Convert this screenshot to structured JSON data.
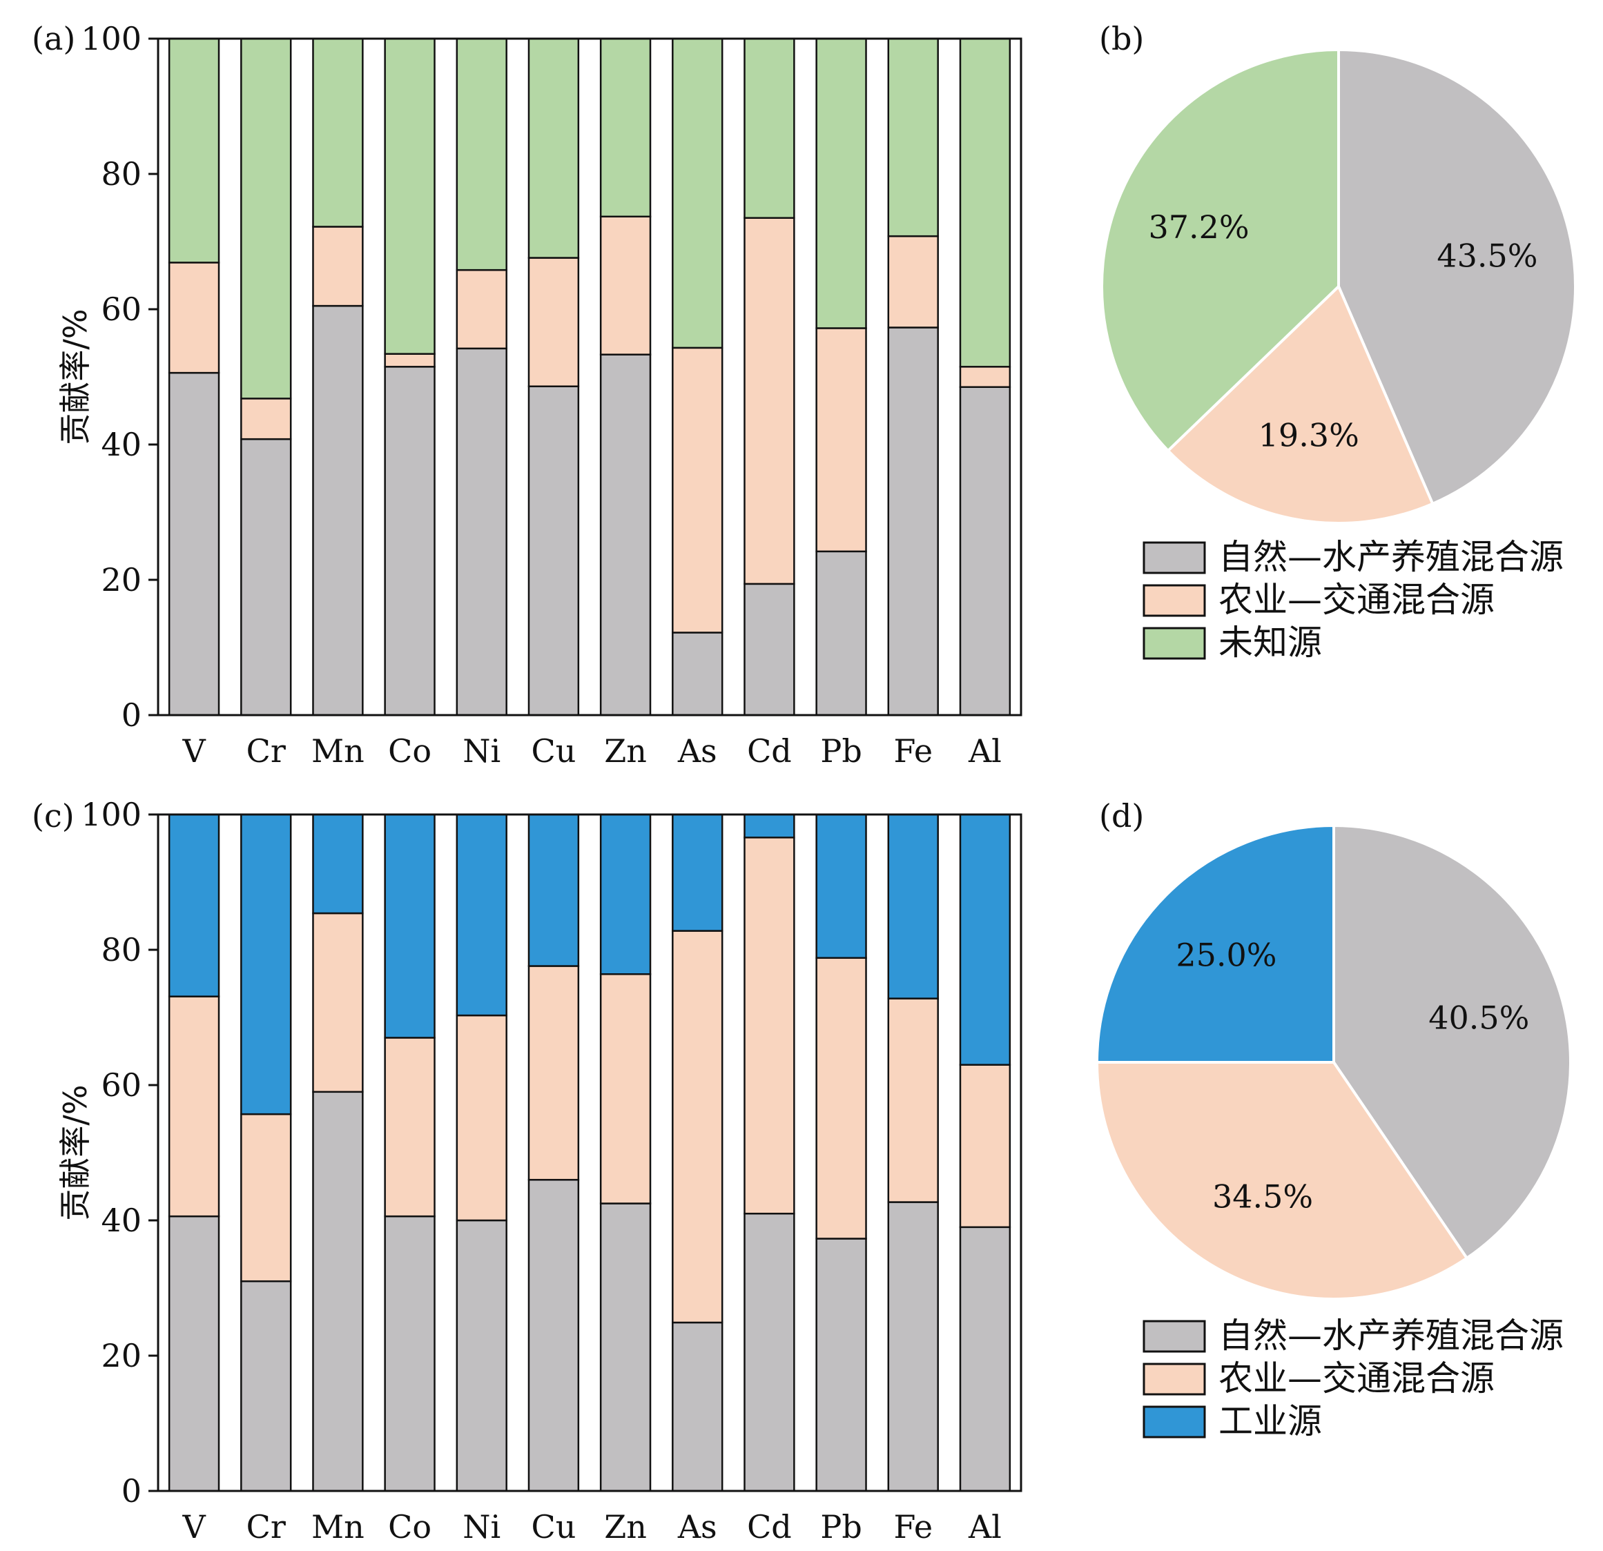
{
  "chart_data": [
    {
      "panel": "(a)",
      "type": "bar",
      "stacked": true,
      "categories": [
        "V",
        "Cr",
        "Mn",
        "Co",
        "Ni",
        "Cu",
        "Zn",
        "As",
        "Cd",
        "Pb",
        "Fe",
        "Al"
      ],
      "ylabel": "贡献率/%",
      "ylim": [
        0,
        100
      ],
      "yticks": [
        "0",
        "20",
        "40",
        "60",
        "80",
        "100"
      ],
      "series": [
        {
          "name": "自然—水产养殖混合源",
          "color": "#c1bfc1",
          "values": [
            50.6,
            40.8,
            60.5,
            51.5,
            54.2,
            48.6,
            53.3,
            12.2,
            19.4,
            24.2,
            57.3,
            48.5
          ]
        },
        {
          "name": "农业—交通混合源",
          "color": "#f9d5bf",
          "values": [
            16.3,
            6.0,
            11.7,
            1.9,
            11.6,
            19.0,
            20.4,
            42.1,
            54.1,
            33.0,
            13.5,
            3.0
          ]
        },
        {
          "name": "未知源",
          "color": "#b4d7a5",
          "values": [
            33.1,
            53.2,
            27.8,
            46.6,
            34.2,
            32.4,
            26.3,
            45.7,
            26.5,
            42.8,
            29.2,
            48.5
          ]
        }
      ]
    },
    {
      "panel": "(b)",
      "type": "pie",
      "slices": [
        {
          "name": "自然—水产养殖混合源",
          "value": 43.5,
          "label": "43.5%",
          "color": "#c1bfc1"
        },
        {
          "name": "农业—交通混合源",
          "value": 19.3,
          "label": "19.3%",
          "color": "#f9d5bf"
        },
        {
          "name": "未知源",
          "value": 37.2,
          "label": "37.2%",
          "color": "#b4d7a5"
        }
      ],
      "legend": [
        "自然—水产养殖混合源",
        "农业—交通混合源",
        "未知源"
      ]
    },
    {
      "panel": "(c)",
      "type": "bar",
      "stacked": true,
      "categories": [
        "V",
        "Cr",
        "Mn",
        "Co",
        "Ni",
        "Cu",
        "Zn",
        "As",
        "Cd",
        "Pb",
        "Fe",
        "Al"
      ],
      "ylabel": "贡献率/%",
      "ylim": [
        0,
        100
      ],
      "yticks": [
        "0",
        "20",
        "40",
        "60",
        "80",
        "100"
      ],
      "series": [
        {
          "name": "自然—水产养殖混合源",
          "color": "#c1bfc1",
          "values": [
            40.6,
            31.0,
            59.0,
            40.6,
            40.0,
            46.0,
            42.5,
            24.9,
            41.0,
            37.3,
            42.7,
            39.0
          ]
        },
        {
          "name": "农业—交通混合源",
          "color": "#f9d5bf",
          "values": [
            32.5,
            24.7,
            26.4,
            26.4,
            30.3,
            31.6,
            33.9,
            57.9,
            55.6,
            41.5,
            30.1,
            24.0
          ]
        },
        {
          "name": "工业源",
          "color": "#3096d6",
          "values": [
            26.9,
            44.3,
            14.6,
            33.0,
            29.7,
            22.4,
            23.6,
            17.2,
            3.4,
            21.2,
            27.2,
            37.0
          ]
        }
      ]
    },
    {
      "panel": "(d)",
      "type": "pie",
      "slices": [
        {
          "name": "自然—水产养殖混合源",
          "value": 40.5,
          "label": "40.5%",
          "color": "#c1bfc1"
        },
        {
          "name": "农业—交通混合源",
          "value": 34.5,
          "label": "34.5%",
          "color": "#f9d5bf"
        },
        {
          "name": "工业源",
          "value": 25.0,
          "label": "25.0%",
          "color": "#3096d6"
        }
      ],
      "legend": [
        "自然—水产养殖混合源",
        "农业—交通混合源",
        "工业源"
      ]
    }
  ]
}
